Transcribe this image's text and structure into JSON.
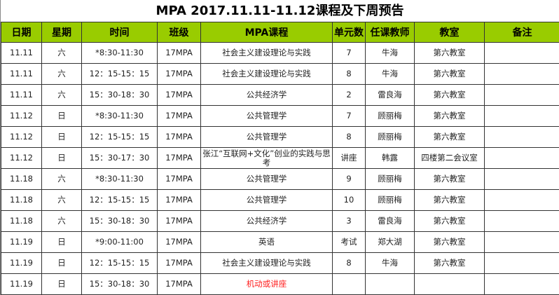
{
  "title": "MPA 2017.11.11-11.12课程及下周预告",
  "headers": [
    "日期",
    "星期",
    "时间",
    "班级",
    "MPA课程",
    "单元数",
    "任课教师",
    "教室",
    "备注"
  ],
  "rows": [
    [
      "11.11",
      "六",
      "*8:30-11:30",
      "17MPA",
      "社会主义建设理论与实践",
      "7",
      "牛海",
      "第六教室",
      ""
    ],
    [
      "11.11",
      "六",
      "12：15-15：15",
      "17MPA",
      "社会主义建设理论与实践",
      "8",
      "牛海",
      "第六教室",
      ""
    ],
    [
      "11.11",
      "六",
      "15：30-18：30",
      "17MPA",
      "公共经济学",
      "2",
      "雷良海",
      "第六教室",
      ""
    ],
    [
      "11.12",
      "日",
      "*8:30-11:30",
      "17MPA",
      "公共管理学",
      "7",
      "顾丽梅",
      "第六教室",
      ""
    ],
    [
      "11.12",
      "日",
      "12：15-15：15",
      "17MPA",
      "公共管理学",
      "8",
      "顾丽梅",
      "第六教室",
      ""
    ],
    [
      "11.12",
      "日",
      "15：30-17：30",
      "17MPA",
      "张江“互联网+文化”创业的实践与思考",
      "讲座",
      "韩露",
      "四楼第二会议室",
      ""
    ],
    [
      "11.18",
      "六",
      "*8:30-11:30",
      "17MPA",
      "公共管理学",
      "9",
      "顾丽梅",
      "第六教室",
      ""
    ],
    [
      "11.18",
      "六",
      "12：15-15：15",
      "17MPA",
      "公共管理学",
      "10",
      "顾丽梅",
      "第六教室",
      ""
    ],
    [
      "11.18",
      "六",
      "15：30-18：30",
      "17MPA",
      "公共经济学",
      "3",
      "雷良海",
      "第六教室",
      ""
    ],
    [
      "11.19",
      "日",
      "*9:00-11:00",
      "17MPA",
      "英语",
      "考试",
      "郑大湖",
      "第六教室",
      ""
    ],
    [
      "11.19",
      "日",
      "12：15-15：15",
      "17MPA",
      "社会主义建设理论与实践",
      "8",
      "牛海",
      "第六教室",
      ""
    ],
    [
      "11.19",
      "日",
      "15：30-18：30",
      "17MPA",
      "机动或讲座",
      "",
      "",
      "",
      ""
    ]
  ],
  "colors": {
    "header_bg": "#99cc00",
    "highlight_text": "#ff2020"
  }
}
